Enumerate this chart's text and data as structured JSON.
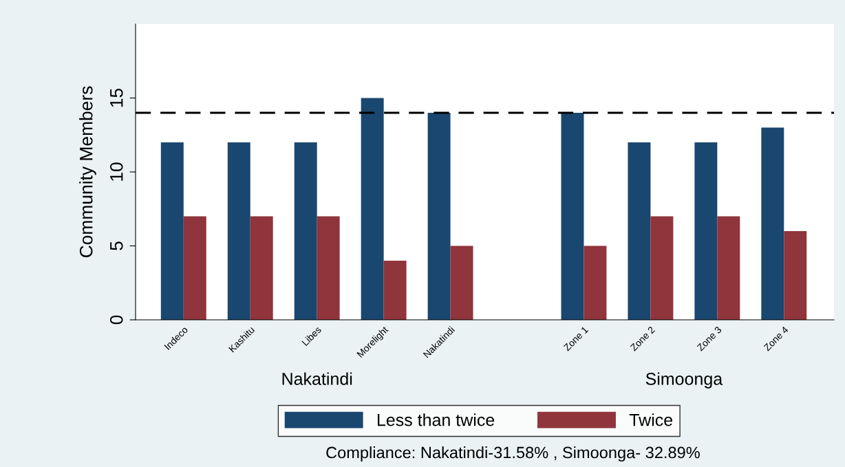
{
  "chart_data": {
    "type": "bar",
    "ylabel": "Community Members",
    "categories": [
      "Indeco",
      "Kashitu",
      "Libes",
      "Morelight",
      "Nakatindi",
      null,
      "Zone 1",
      "Zone 2",
      "Zone 3",
      "Zone 4"
    ],
    "series": [
      {
        "name": "Less than twice",
        "color": "#1a476f",
        "values": [
          12,
          12,
          12,
          15,
          14,
          null,
          14,
          12,
          12,
          13
        ]
      },
      {
        "name": "Twice",
        "color": "#90353b",
        "values": [
          7,
          7,
          7,
          4,
          5,
          null,
          5,
          7,
          7,
          6
        ]
      }
    ],
    "ylim": [
      0,
      20
    ],
    "yticks": [
      0,
      5,
      10,
      15
    ],
    "ref_lines": [
      {
        "axis": "y",
        "value": 14,
        "color": "#000000",
        "line_style": "dashed"
      }
    ],
    "annotations": [
      "Nakatindi",
      "Simoonga",
      "Compliance: Nakatindi-31.58% , Simoonga- 32.89%"
    ],
    "legend": "bottom",
    "grid": false
  }
}
